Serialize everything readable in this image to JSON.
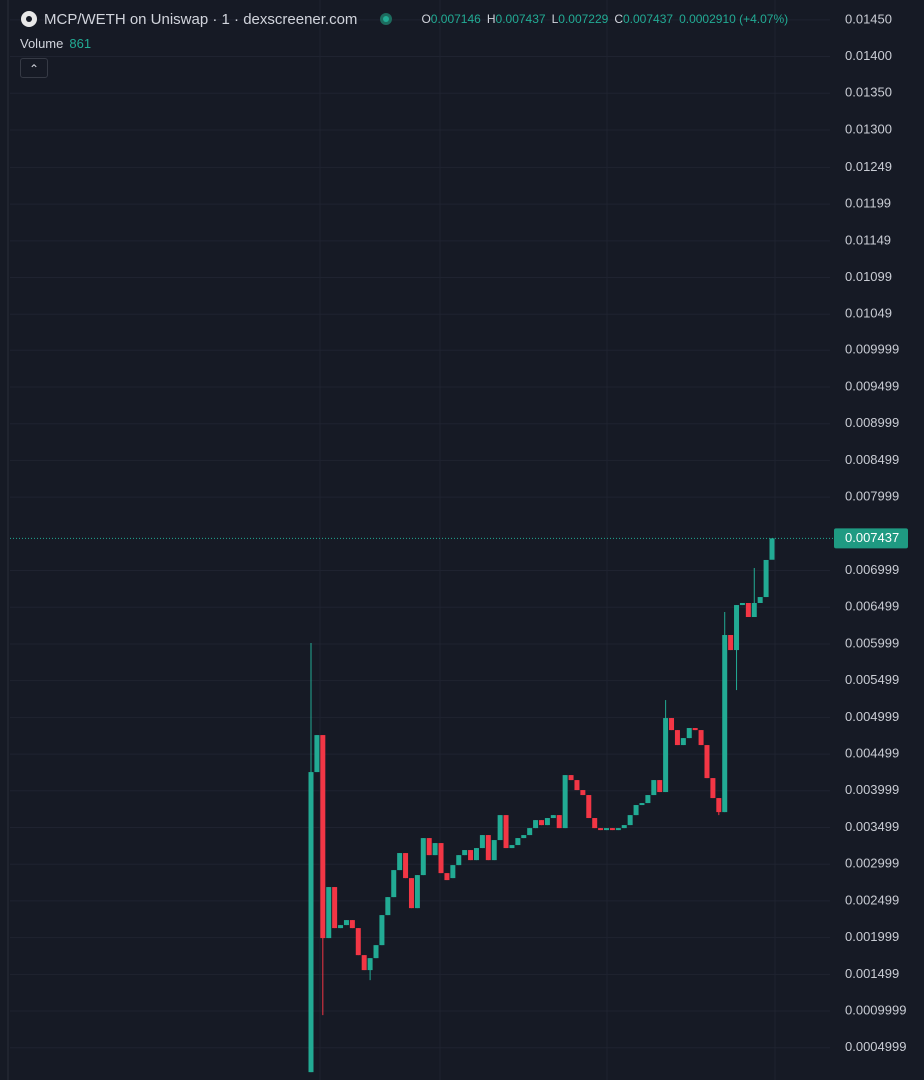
{
  "header": {
    "title": "MCP/WETH on Uniswap · 1 · dexscreener.com",
    "ohlc": [
      {
        "key": "O",
        "value": "0.007146"
      },
      {
        "key": "H",
        "value": "0.007437"
      },
      {
        "key": "L",
        "value": "0.007229"
      },
      {
        "key": "C",
        "value": "0.007437"
      }
    ],
    "change": "0.0002910 (+4.07%)",
    "volume_label": "Volume",
    "volume": "861"
  },
  "chart_data": {
    "type": "candlestick",
    "up_color": "#22ab94",
    "down_color": "#f23645",
    "grid": true,
    "ylim": [
      6e-05,
      0.01477
    ],
    "yticks": [
      {
        "value": 0.0145,
        "label": "0.01450"
      },
      {
        "value": 0.014,
        "label": "0.01400"
      },
      {
        "value": 0.0135,
        "label": "0.01350"
      },
      {
        "value": 0.013,
        "label": "0.01300"
      },
      {
        "value": 0.01249,
        "label": "0.01249"
      },
      {
        "value": 0.01199,
        "label": "0.01199"
      },
      {
        "value": 0.01149,
        "label": "0.01149"
      },
      {
        "value": 0.01099,
        "label": "0.01099"
      },
      {
        "value": 0.01049,
        "label": "0.01049"
      },
      {
        "value": 0.009999,
        "label": "0.009999"
      },
      {
        "value": 0.009499,
        "label": "0.009499"
      },
      {
        "value": 0.008999,
        "label": "0.008999"
      },
      {
        "value": 0.008499,
        "label": "0.008499"
      },
      {
        "value": 0.007999,
        "label": "0.007999"
      },
      {
        "value": 0.006999,
        "label": "0.006999"
      },
      {
        "value": 0.006499,
        "label": "0.006499"
      },
      {
        "value": 0.005999,
        "label": "0.005999"
      },
      {
        "value": 0.005499,
        "label": "0.005499"
      },
      {
        "value": 0.004999,
        "label": "0.004999"
      },
      {
        "value": 0.004499,
        "label": "0.004499"
      },
      {
        "value": 0.003999,
        "label": "0.003999"
      },
      {
        "value": 0.003499,
        "label": "0.003499"
      },
      {
        "value": 0.002999,
        "label": "0.002999"
      },
      {
        "value": 0.002499,
        "label": "0.002499"
      },
      {
        "value": 0.001999,
        "label": "0.001999"
      },
      {
        "value": 0.001499,
        "label": "0.001499"
      },
      {
        "value": 0.0009999,
        "label": "0.0009999"
      },
      {
        "value": 0.0004999,
        "label": "0.0004999"
      }
    ],
    "price_line": {
      "value": 0.007437,
      "label": "0.007437"
    },
    "open": [
      0.000167,
      0.004254,
      0.004758,
      0.001993,
      0.002688,
      0.002129,
      0.00217,
      0.002238,
      0.002129,
      0.001761,
      0.001557,
      0.00172,
      0.001897,
      0.002306,
      0.002551,
      0.002919,
      0.003151,
      0.00281,
      0.002401,
      0.002851,
      0.003355,
      0.003123,
      0.003287,
      0.002878,
      0.00281,
      0.002987,
      0.003123,
      0.003192,
      0.003055,
      0.003219,
      0.003396,
      0.003055,
      0.003328,
      0.003668,
      0.003219,
      0.00326,
      0.003355,
      0.003396,
      0.003491,
      0.0036,
      0.003532,
      0.003628,
      0.003668,
      0.003491,
      0.004213,
      0.004145,
      0.004009,
      0.003941,
      0.003628,
      0.003491,
      0.003464,
      0.003491,
      0.003464,
      0.003491,
      0.003532,
      0.003668,
      0.003805,
      0.003832,
      0.003941,
      0.004145,
      0.003982,
      0.00499,
      0.004826,
      0.004622,
      0.004717,
      0.004854,
      0.004826,
      0.004622,
      0.004172,
      0.0039,
      0.003709,
      0.006121,
      0.005916,
      0.006529,
      0.006557,
      0.006366,
      0.006557,
      0.006638,
      0.007146
    ],
    "high": [
      0.006012,
      0.004758,
      0.004758,
      0.002688,
      0.002688,
      0.00217,
      0.002238,
      0.002238,
      0.002129,
      0.001761,
      0.00172,
      0.001897,
      0.002306,
      0.002551,
      0.002919,
      0.003151,
      0.003151,
      0.00281,
      0.002851,
      0.003355,
      0.003355,
      0.003287,
      0.003287,
      0.002878,
      0.002987,
      0.003123,
      0.003192,
      0.003192,
      0.003219,
      0.003396,
      0.003396,
      0.003328,
      0.003668,
      0.003668,
      0.00326,
      0.003355,
      0.003396,
      0.003491,
      0.0036,
      0.0036,
      0.003628,
      0.003668,
      0.003668,
      0.004213,
      0.004213,
      0.004145,
      0.004009,
      0.003941,
      0.003628,
      0.003491,
      0.003491,
      0.003491,
      0.003491,
      0.003532,
      0.003668,
      0.003805,
      0.003832,
      0.003941,
      0.004145,
      0.004145,
      0.005235,
      0.00499,
      0.004826,
      0.004717,
      0.004854,
      0.004854,
      0.004826,
      0.004622,
      0.004172,
      0.0039,
      0.006434,
      0.006121,
      0.006529,
      0.006557,
      0.006557,
      0.007034,
      0.006638,
      0.007143,
      0.007437
    ],
    "low": [
      0.000167,
      0.004254,
      0.000944,
      0.001993,
      0.002129,
      0.002129,
      0.00217,
      0.002129,
      0.001761,
      0.001557,
      0.00142,
      0.00172,
      0.001897,
      0.002306,
      0.002551,
      0.002919,
      0.00281,
      0.002401,
      0.002401,
      0.002851,
      0.003123,
      0.003123,
      0.002878,
      0.002783,
      0.00281,
      0.002987,
      0.003123,
      0.003055,
      0.003055,
      0.003219,
      0.003055,
      0.003055,
      0.003328,
      0.003219,
      0.003219,
      0.00326,
      0.003355,
      0.003396,
      0.003491,
      0.003532,
      0.003532,
      0.003628,
      0.003491,
      0.003491,
      0.004145,
      0.004009,
      0.003941,
      0.003628,
      0.003491,
      0.003464,
      0.003464,
      0.003464,
      0.003464,
      0.003491,
      0.003532,
      0.003668,
      0.003805,
      0.003832,
      0.003941,
      0.003982,
      0.003982,
      0.004826,
      0.004622,
      0.004622,
      0.004717,
      0.004826,
      0.004622,
      0.004172,
      0.0039,
      0.003668,
      0.003709,
      0.005916,
      0.005371,
      0.006529,
      0.006366,
      0.006366,
      0.006557,
      0.006638,
      0.007229
    ],
    "close": [
      0.004254,
      0.004758,
      0.001993,
      0.002688,
      0.002129,
      0.00217,
      0.002238,
      0.002129,
      0.001761,
      0.001557,
      0.00172,
      0.001897,
      0.002306,
      0.002551,
      0.002919,
      0.003151,
      0.00281,
      0.002401,
      0.002851,
      0.003355,
      0.003123,
      0.003287,
      0.002878,
      0.002783,
      0.002987,
      0.003123,
      0.003192,
      0.003055,
      0.003219,
      0.003396,
      0.003055,
      0.003328,
      0.003668,
      0.003219,
      0.00326,
      0.003355,
      0.003396,
      0.003491,
      0.0036,
      0.003532,
      0.003628,
      0.003668,
      0.003491,
      0.004213,
      0.004145,
      0.004009,
      0.003941,
      0.003628,
      0.003491,
      0.003464,
      0.003491,
      0.003464,
      0.003491,
      0.003532,
      0.003668,
      0.003805,
      0.003832,
      0.003941,
      0.004145,
      0.003982,
      0.00499,
      0.004826,
      0.004622,
      0.004717,
      0.004854,
      0.004826,
      0.004622,
      0.004172,
      0.0039,
      0.003709,
      0.006121,
      0.005916,
      0.006529,
      0.006557,
      0.006366,
      0.006557,
      0.006638,
      0.007143,
      0.007437
    ]
  }
}
